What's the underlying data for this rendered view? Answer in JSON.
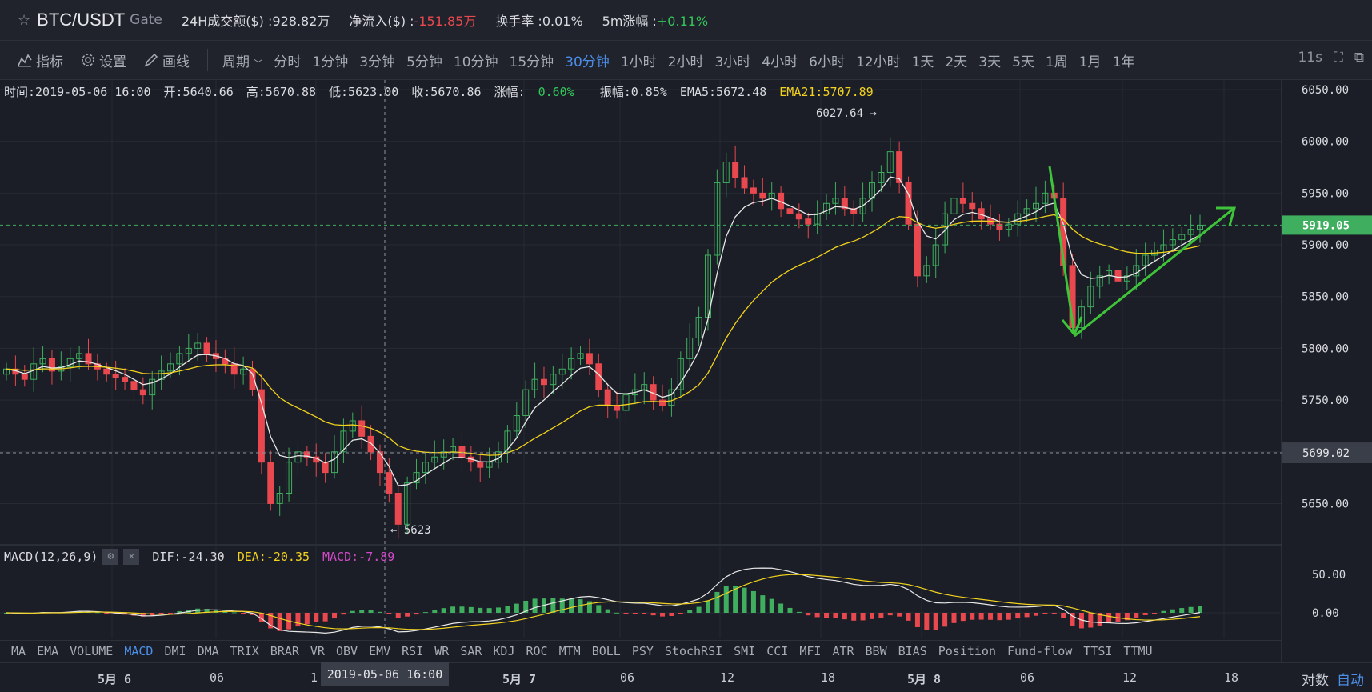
{
  "header": {
    "symbol": "BTC/USDT",
    "exchange": "Gate",
    "volume_label": "24H成交额($) :",
    "volume_value": "928.82万",
    "netflow_label": "净流入($) :",
    "netflow_value": "-151.85万",
    "turnover_label": "换手率 :",
    "turnover_value": "0.01%",
    "change5m_label": "5m涨幅 :",
    "change5m_value": "+0.11%"
  },
  "toolbar": {
    "indicator": "指标",
    "settings": "设置",
    "draw": "画线",
    "period": "周期",
    "periods": [
      "分时",
      "1分钟",
      "3分钟",
      "5分钟",
      "10分钟",
      "15分钟",
      "30分钟",
      "1小时",
      "2小时",
      "3小时",
      "4小时",
      "6小时",
      "12小时",
      "1天",
      "2天",
      "3天",
      "5天",
      "1周",
      "1月",
      "1年"
    ],
    "active_period": "30分钟",
    "refresh": "11s"
  },
  "info": {
    "time": "时间:2019-05-06 16:00",
    "open": "开:5640.66",
    "high": "高:5670.88",
    "low": "低:5623.00",
    "close": "收:5670.86",
    "change_label": "涨幅:",
    "change_value": "0.60%",
    "amp": "振幅:0.85%",
    "ema5": "EMA5:5672.48",
    "ema21": "EMA21:5707.89"
  },
  "macd_info": {
    "name": "MACD(12,26,9)",
    "dif": "DIF:-24.30",
    "dea": "DEA:-20.35",
    "macd": "MACD:-7.89"
  },
  "annotations": {
    "high_label": "6027.64 →",
    "low_label": "← 5623"
  },
  "indicators": [
    "MA",
    "EMA",
    "VOLUME",
    "MACD",
    "DMI",
    "DMA",
    "TRIX",
    "BRAR",
    "VR",
    "OBV",
    "EMV",
    "RSI",
    "WR",
    "SAR",
    "KDJ",
    "ROC",
    "MTM",
    "BOLL",
    "PSY",
    "StochRSI",
    "SMI",
    "CCI",
    "MFI",
    "ATR",
    "BBW",
    "BIAS",
    "Position",
    "Fund-flow",
    "TTSI",
    "TTMU"
  ],
  "active_indicator": "MACD",
  "time_axis": [
    {
      "label": "5月 6",
      "bold": true
    },
    {
      "label": "06",
      "bold": false
    },
    {
      "label": "1",
      "bold": false
    },
    {
      "label": "5月 7",
      "bold": true
    },
    {
      "label": "06",
      "bold": false
    },
    {
      "label": "12",
      "bold": false
    },
    {
      "label": "18",
      "bold": false
    },
    {
      "label": "5月 8",
      "bold": true
    },
    {
      "label": "06",
      "bold": false
    },
    {
      "label": "12",
      "bold": false
    },
    {
      "label": "18",
      "bold": false
    }
  ],
  "cursor_time": "2019-05-06 16:00",
  "scale": {
    "log": "对数",
    "auto": "自动"
  },
  "chart_data": {
    "type": "candlestick",
    "price_axis": [
      6050,
      6000,
      5950,
      5900,
      5850,
      5800,
      5750,
      5700,
      5650
    ],
    "price_axis_labels": [
      "6050.00",
      "6000.00",
      "5950.00",
      "5900.00",
      "5850.00",
      "5800.00",
      "5750.00",
      "5650.00"
    ],
    "current_price": "5919.05",
    "cursor_price": "5699.02",
    "macd_axis": [
      "50.00",
      "0.00"
    ],
    "colors": {
      "up": "#3fae5e",
      "down": "#e8484e",
      "ema5": "#e8e8e8",
      "ema21": "#f2d21f",
      "dea": "#f2d21f",
      "dif": "#e8e8e8",
      "trend": "#3ec33a"
    },
    "closes": [
      5780,
      5775,
      5770,
      5785,
      5790,
      5778,
      5782,
      5790,
      5795,
      5785,
      5780,
      5775,
      5772,
      5768,
      5760,
      5755,
      5770,
      5778,
      5785,
      5795,
      5800,
      5805,
      5795,
      5790,
      5785,
      5775,
      5780,
      5760,
      5690,
      5650,
      5660,
      5690,
      5700,
      5695,
      5690,
      5680,
      5700,
      5720,
      5730,
      5715,
      5700,
      5680,
      5660,
      5630,
      5670,
      5680,
      5690,
      5695,
      5700,
      5705,
      5695,
      5690,
      5685,
      5690,
      5700,
      5720,
      5735,
      5760,
      5770,
      5765,
      5775,
      5780,
      5790,
      5795,
      5785,
      5760,
      5745,
      5740,
      5755,
      5760,
      5765,
      5750,
      5745,
      5760,
      5790,
      5810,
      5830,
      5890,
      5960,
      5980,
      5965,
      5955,
      5950,
      5945,
      5950,
      5935,
      5930,
      5925,
      5920,
      5930,
      5940,
      5945,
      5935,
      5930,
      5945,
      5960,
      5970,
      5990,
      5960,
      5920,
      5870,
      5880,
      5900,
      5930,
      5945,
      5940,
      5935,
      5925,
      5920,
      5915,
      5920,
      5930,
      5935,
      5940,
      5950,
      5945,
      5880,
      5820,
      5840,
      5860,
      5870,
      5875,
      5865,
      5870,
      5880,
      5890,
      5895,
      5900,
      5905,
      5910,
      5915,
      5919
    ]
  }
}
